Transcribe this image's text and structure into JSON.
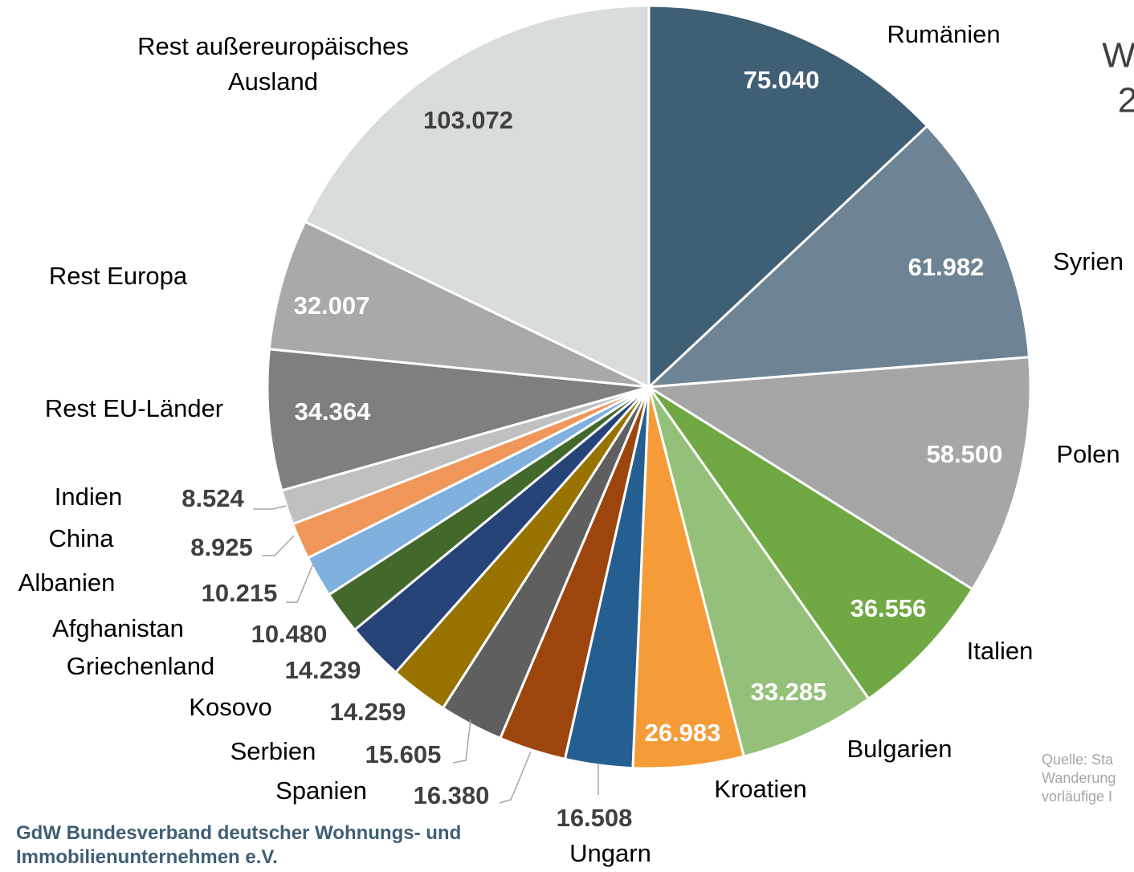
{
  "chart_data": {
    "type": "pie",
    "title_lines": [
      "W",
      "2"
    ],
    "categories": [
      "Rumänien",
      "Syrien",
      "Polen",
      "Italien",
      "Bulgarien",
      "Kroatien",
      "Ungarn",
      "Spanien",
      "Serbien",
      "Kosovo",
      "Griechenland",
      "Afghanistan",
      "Albanien",
      "China",
      "Indien",
      "Rest EU-Länder",
      "Rest Europa",
      "Rest außereuropäisches Ausland"
    ],
    "values": [
      75040,
      61982,
      58500,
      36556,
      33285,
      26983,
      16508,
      16380,
      15605,
      14259,
      14239,
      10480,
      10215,
      8925,
      8524,
      34364,
      32007,
      103072
    ],
    "value_labels": [
      "75.040",
      "61.982",
      "58.500",
      "36.556",
      "33.285",
      "26.983",
      "16.508",
      "16.380",
      "15.605",
      "14.259",
      "14.239",
      "10.480",
      "10.215",
      "8.925",
      "8.524",
      "34.364",
      "32.007",
      "103.072"
    ],
    "colors": [
      "#3f5f74",
      "#6e8494",
      "#a6a6a6",
      "#70a844",
      "#95c07a",
      "#f59c38",
      "#255f92",
      "#9c460e",
      "#5f5f5f",
      "#997300",
      "#264478",
      "#43682b",
      "#7fb0de",
      "#f0965a",
      "#c0c0c0",
      "#7f7f7f",
      "#a9a9a9",
      "#d9dcdd"
    ],
    "source_lines": [
      "Quelle: Sta",
      "Wanderung",
      "vorläufige I"
    ]
  },
  "footer": "GdW Bundesverband deutscher Wohnungs- und Immobilienunternehmen e.V."
}
